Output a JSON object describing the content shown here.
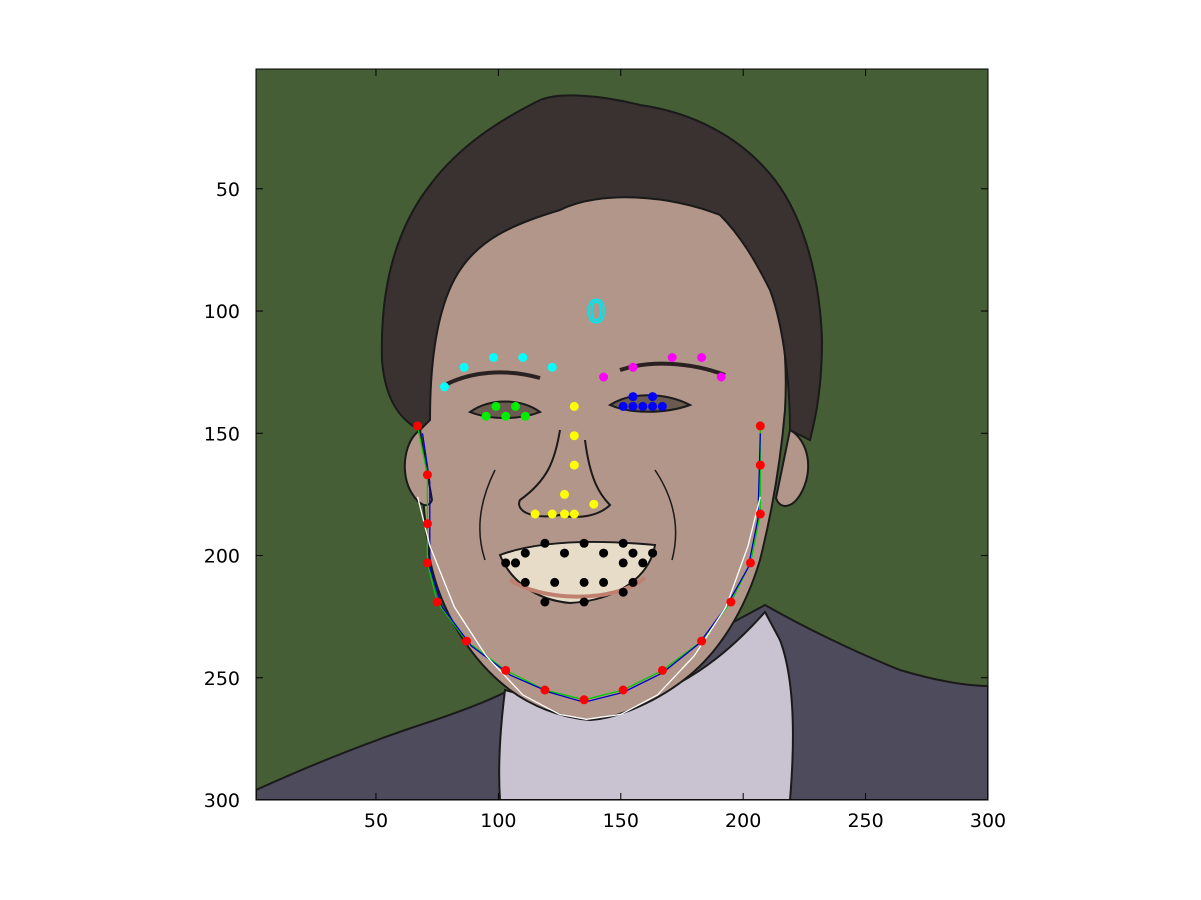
{
  "chart_data": {
    "type": "scatter",
    "background": "image",
    "image_content": "cartoon portrait of a man's face in a dark suit with white shirt, dark hair, green background",
    "xlim": [
      1,
      300
    ],
    "ylim": [
      300,
      1
    ],
    "y_inverted": true,
    "grid": false,
    "xticks": [
      50,
      100,
      150,
      200,
      250,
      300
    ],
    "yticks": [
      50,
      100,
      150,
      200,
      250,
      300
    ],
    "xtick_labels": [
      "50",
      "100",
      "150",
      "200",
      "250",
      "300"
    ],
    "ytick_labels": [
      "50",
      "100",
      "150",
      "200",
      "250",
      "300"
    ],
    "annotation": {
      "text": "0",
      "x": 140,
      "y": 100,
      "color": "#00e5ee"
    },
    "colors": {
      "background": "#465e36",
      "hair": "#3a3131",
      "skin": "#b3968a",
      "suit": "#4e4c5c",
      "shirt": "#c9c2d1",
      "outline": "#1a1a1a"
    },
    "series": [
      {
        "color": "#00ffff",
        "points": [
          [
            78,
            131
          ],
          [
            86,
            123
          ],
          [
            98,
            119
          ],
          [
            110,
            119
          ],
          [
            122,
            123
          ]
        ]
      },
      {
        "color": "#ff00ff",
        "points": [
          [
            143,
            127
          ],
          [
            155,
            123
          ],
          [
            171,
            119
          ],
          [
            183,
            119
          ],
          [
            191,
            127
          ]
        ]
      },
      {
        "color": "#00ee00",
        "points": [
          [
            95,
            143
          ],
          [
            99,
            139
          ],
          [
            103,
            143
          ],
          [
            107,
            139
          ],
          [
            111,
            143
          ]
        ]
      },
      {
        "color": "#0000ff",
        "points": [
          [
            151,
            139
          ],
          [
            155,
            135
          ],
          [
            159,
            139
          ],
          [
            163,
            135
          ],
          [
            167,
            139
          ],
          [
            155,
            139
          ],
          [
            163,
            139
          ]
        ]
      },
      {
        "color": "#ffff00",
        "points": [
          [
            131,
            139
          ],
          [
            131,
            151
          ],
          [
            131,
            163
          ],
          [
            127,
            175
          ],
          [
            122,
            183
          ],
          [
            115,
            183
          ],
          [
            127,
            183
          ],
          [
            131,
            183
          ],
          [
            139,
            179
          ]
        ]
      },
      {
        "color": "#000000",
        "points": [
          [
            103,
            203
          ],
          [
            107,
            203
          ],
          [
            111,
            199
          ],
          [
            119,
            195
          ],
          [
            127,
            199
          ],
          [
            135,
            195
          ],
          [
            143,
            199
          ],
          [
            151,
            195
          ],
          [
            155,
            199
          ],
          [
            163,
            199
          ],
          [
            159,
            203
          ],
          [
            155,
            211
          ],
          [
            143,
            211
          ],
          [
            135,
            211
          ],
          [
            123,
            211
          ],
          [
            111,
            211
          ],
          [
            119,
            219
          ],
          [
            135,
            219
          ],
          [
            151,
            215
          ],
          [
            107,
            203
          ],
          [
            151,
            203
          ]
        ]
      },
      {
        "color": "#ff0000",
        "points": [
          [
            67,
            147
          ],
          [
            71,
            167
          ],
          [
            71,
            187
          ],
          [
            71,
            203
          ],
          [
            75,
            219
          ],
          [
            87,
            235
          ],
          [
            103,
            247
          ],
          [
            119,
            255
          ],
          [
            135,
            259
          ],
          [
            151,
            255
          ],
          [
            167,
            247
          ],
          [
            183,
            235
          ],
          [
            195,
            219
          ],
          [
            203,
            203
          ],
          [
            207,
            183
          ],
          [
            207,
            163
          ],
          [
            207,
            147
          ]
        ]
      }
    ],
    "curves": [
      {
        "color": "#00cc00",
        "points": [
          [
            67,
            147
          ],
          [
            71,
            167
          ],
          [
            71,
            203
          ],
          [
            75,
            219
          ],
          [
            87,
            235
          ],
          [
            103,
            247
          ],
          [
            119,
            255
          ],
          [
            135,
            259
          ],
          [
            151,
            255
          ],
          [
            167,
            247
          ],
          [
            183,
            235
          ],
          [
            195,
            219
          ],
          [
            203,
            203
          ],
          [
            207,
            183
          ],
          [
            207,
            147
          ]
        ]
      },
      {
        "color": "#0000cc",
        "points": [
          [
            69,
            150
          ],
          [
            72,
            170
          ],
          [
            72,
            205
          ],
          [
            77,
            221
          ],
          [
            89,
            237
          ],
          [
            105,
            249
          ],
          [
            121,
            256
          ],
          [
            135,
            260
          ],
          [
            151,
            256
          ],
          [
            167,
            248
          ],
          [
            182,
            236
          ],
          [
            193,
            221
          ],
          [
            202,
            205
          ],
          [
            206,
            185
          ],
          [
            207,
            150
          ]
        ]
      },
      {
        "color": "#ffffff",
        "points": [
          [
            67,
            176
          ],
          [
            72,
            196
          ],
          [
            82,
            221
          ],
          [
            95,
            241
          ],
          [
            110,
            257
          ],
          [
            125,
            265
          ],
          [
            136,
            267
          ],
          [
            150,
            265
          ],
          [
            165,
            257
          ],
          [
            180,
            241
          ],
          [
            193,
            221
          ],
          [
            202,
            196
          ],
          [
            207,
            176
          ]
        ]
      }
    ]
  }
}
